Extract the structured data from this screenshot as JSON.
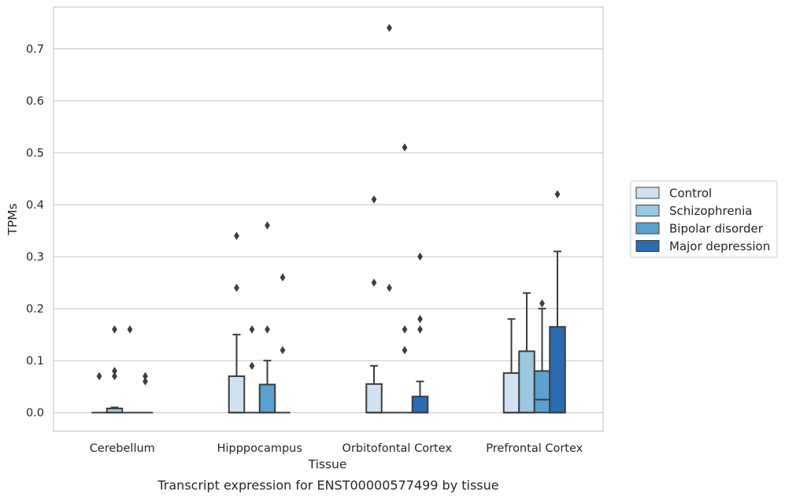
{
  "caption": "Transcript expression for ENST00000577499 by tissue",
  "chart_data": {
    "type": "box",
    "title": "",
    "xlabel": "Tissue",
    "ylabel": "TPMs",
    "ylim": [
      -0.036,
      0.78
    ],
    "yticks": [
      0.0,
      0.1,
      0.2,
      0.3,
      0.4,
      0.5,
      0.6,
      0.7
    ],
    "ytick_labels": [
      "0.0",
      "0.1",
      "0.2",
      "0.3",
      "0.4",
      "0.5",
      "0.6",
      "0.7"
    ],
    "grid": "horizontal",
    "legend_position": "right",
    "categories": [
      "Cerebellum",
      "Hipppocampus",
      "Orbitofontal Cortex",
      "Prefrontal Cortex"
    ],
    "series": [
      {
        "name": "Control",
        "color": "#d0e2f2",
        "boxes": [
          {
            "q1": 0,
            "median": 0,
            "q3": 0,
            "whisker_low": 0,
            "whisker_high": 0,
            "outliers": [
              0.07
            ]
          },
          {
            "q1": 0,
            "median": 0,
            "q3": 0.07,
            "whisker_low": 0,
            "whisker_high": 0.15,
            "outliers": [
              0.24,
              0.34
            ]
          },
          {
            "q1": 0,
            "median": 0,
            "q3": 0.055,
            "whisker_low": 0,
            "whisker_high": 0.09,
            "outliers": [
              0.25,
              0.41
            ]
          },
          {
            "q1": 0,
            "median": 0,
            "q3": 0.076,
            "whisker_low": 0,
            "whisker_high": 0.18,
            "outliers": []
          }
        ]
      },
      {
        "name": "Schizophrenia",
        "color": "#9ac8e0",
        "boxes": [
          {
            "q1": 0,
            "median": 0,
            "q3": 0.008,
            "whisker_low": 0,
            "whisker_high": 0.01,
            "outliers": [
              0.07,
              0.08,
              0.16
            ]
          },
          {
            "q1": 0,
            "median": 0,
            "q3": 0,
            "whisker_low": 0,
            "whisker_high": 0,
            "outliers": [
              0.09,
              0.16
            ]
          },
          {
            "q1": 0,
            "median": 0,
            "q3": 0,
            "whisker_low": 0,
            "whisker_high": 0,
            "outliers": [
              0.24,
              0.74
            ]
          },
          {
            "q1": 0,
            "median": 0,
            "q3": 0.118,
            "whisker_low": 0,
            "whisker_high": 0.23,
            "outliers": []
          }
        ]
      },
      {
        "name": "Bipolar disorder",
        "color": "#5aa1cf",
        "boxes": [
          {
            "q1": 0,
            "median": 0,
            "q3": 0,
            "whisker_low": 0,
            "whisker_high": 0,
            "outliers": [
              0.16
            ]
          },
          {
            "q1": 0,
            "median": 0,
            "q3": 0.054,
            "whisker_low": 0,
            "whisker_high": 0.1,
            "outliers": [
              0.16,
              0.36
            ]
          },
          {
            "q1": 0,
            "median": 0,
            "q3": 0,
            "whisker_low": 0,
            "whisker_high": 0,
            "outliers": [
              0.12,
              0.16,
              0.51
            ]
          },
          {
            "q1": 0,
            "median": 0.025,
            "q3": 0.08,
            "whisker_low": 0,
            "whisker_high": 0.2,
            "outliers": [
              0.21
            ]
          }
        ]
      },
      {
        "name": "Major depression",
        "color": "#2b6cb0",
        "boxes": [
          {
            "q1": 0,
            "median": 0,
            "q3": 0,
            "whisker_low": 0,
            "whisker_high": 0,
            "outliers": [
              0.06,
              0.07
            ]
          },
          {
            "q1": 0,
            "median": 0,
            "q3": 0,
            "whisker_low": 0,
            "whisker_high": 0,
            "outliers": [
              0.12,
              0.26
            ]
          },
          {
            "q1": 0,
            "median": 0,
            "q3": 0.031,
            "whisker_low": 0,
            "whisker_high": 0.06,
            "outliers": [
              0.16,
              0.18,
              0.3
            ]
          },
          {
            "q1": 0,
            "median": 0,
            "q3": 0.165,
            "whisker_low": 0,
            "whisker_high": 0.31,
            "outliers": [
              0.42
            ]
          }
        ]
      }
    ]
  }
}
